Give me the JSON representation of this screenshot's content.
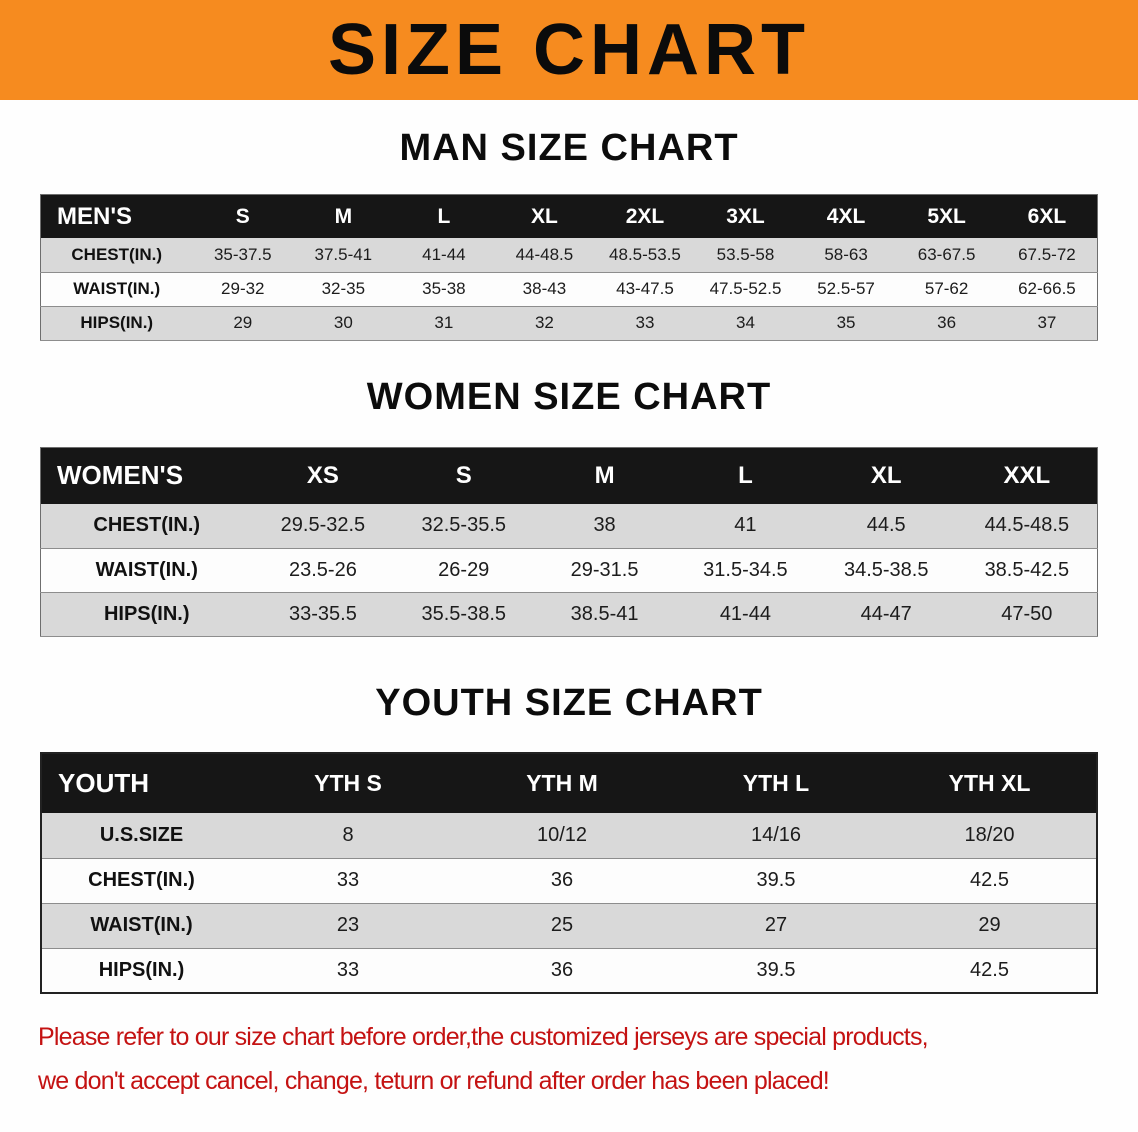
{
  "banner": {
    "title": "SIZE CHART"
  },
  "headings": {
    "men": "MAN SIZE CHART",
    "women": "WOMEN SIZE CHART",
    "youth": "YOUTH SIZE CHART"
  },
  "tables": {
    "men": {
      "header": [
        "MEN'S",
        "S",
        "M",
        "L",
        "XL",
        "2XL",
        "3XL",
        "4XL",
        "5XL",
        "6XL"
      ],
      "rows": [
        [
          "CHEST(IN.)",
          "35-37.5",
          "37.5-41",
          "41-44",
          "44-48.5",
          "48.5-53.5",
          "53.5-58",
          "58-63",
          "63-67.5",
          "67.5-72"
        ],
        [
          "WAIST(IN.)",
          "29-32",
          "32-35",
          "35-38",
          "38-43",
          "43-47.5",
          "47.5-52.5",
          "52.5-57",
          "57-62",
          "62-66.5"
        ],
        [
          "HIPS(IN.)",
          "29",
          "30",
          "31",
          "32",
          "33",
          "34",
          "35",
          "36",
          "37"
        ]
      ]
    },
    "women": {
      "header": [
        "WOMEN'S",
        "XS",
        "S",
        "M",
        "L",
        "XL",
        "XXL"
      ],
      "rows": [
        [
          "CHEST(IN.)",
          "29.5-32.5",
          "32.5-35.5",
          "38",
          "41",
          "44.5",
          "44.5-48.5"
        ],
        [
          "WAIST(IN.)",
          "23.5-26",
          "26-29",
          "29-31.5",
          "31.5-34.5",
          "34.5-38.5",
          "38.5-42.5"
        ],
        [
          "HIPS(IN.)",
          "33-35.5",
          "35.5-38.5",
          "38.5-41",
          "41-44",
          "44-47",
          "47-50"
        ]
      ]
    },
    "youth": {
      "header": [
        "YOUTH",
        "YTH S",
        "YTH M",
        "YTH L",
        "YTH XL"
      ],
      "rows": [
        [
          "U.S.SIZE",
          "8",
          "10/12",
          "14/16",
          "18/20"
        ],
        [
          "CHEST(IN.)",
          "33",
          "36",
          "39.5",
          "42.5"
        ],
        [
          "WAIST(IN.)",
          "23",
          "25",
          "27",
          "29"
        ],
        [
          "HIPS(IN.)",
          "33",
          "36",
          "39.5",
          "42.5"
        ]
      ]
    }
  },
  "footer": {
    "line1": "Please refer to our size chart before order,the customized jerseys are special products,",
    "line2": "we don't accept cancel, change, teturn or refund after order has been placed!"
  },
  "colors": {
    "banner_bg": "#f68b1f",
    "table_header_bg": "#161616",
    "row_shaded": "#d9d9d9",
    "row_plain": "#fdfdfd",
    "footer_text": "#c41212"
  }
}
